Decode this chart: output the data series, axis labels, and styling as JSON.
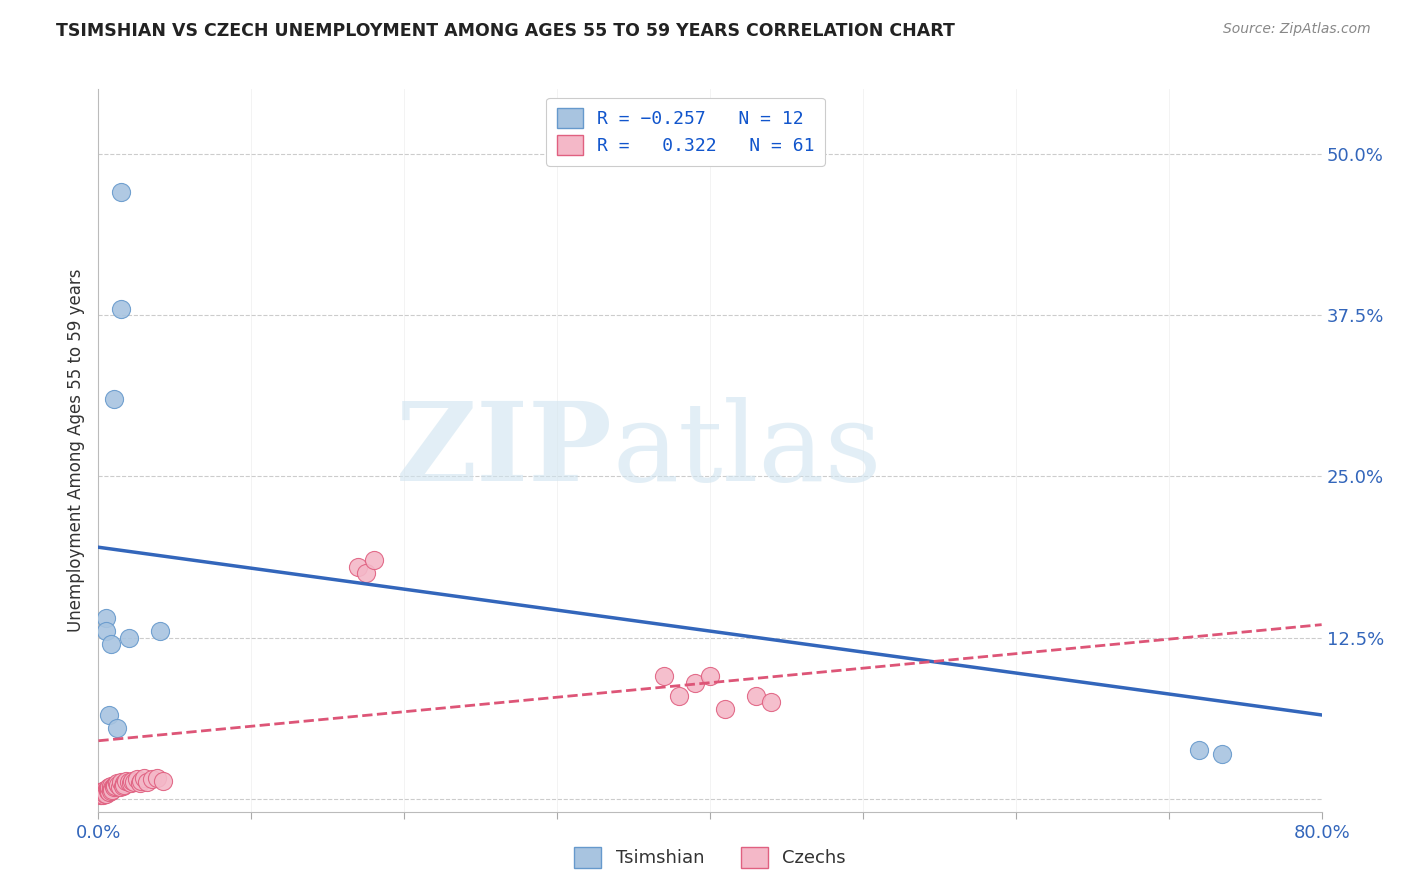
{
  "title": "TSIMSHIAN VS CZECH UNEMPLOYMENT AMONG AGES 55 TO 59 YEARS CORRELATION CHART",
  "source": "Source: ZipAtlas.com",
  "ylabel": "Unemployment Among Ages 55 to 59 years",
  "xlim": [
    0.0,
    0.8
  ],
  "ylim": [
    -0.01,
    0.55
  ],
  "yticks": [
    0.0,
    0.125,
    0.25,
    0.375,
    0.5
  ],
  "ytick_labels": [
    "",
    "12.5%",
    "25.0%",
    "37.5%",
    "50.0%"
  ],
  "legend_r1": "R = -0.257",
  "legend_n1": "N = 12",
  "legend_r2": "R =  0.322",
  "legend_n2": "N = 61",
  "tsimshian_color": "#a8c4e0",
  "tsimshian_edge": "#6699cc",
  "tsimshian_line_color": "#3366bb",
  "czech_color": "#f4b8c8",
  "czech_edge": "#e06080",
  "czech_line_color": "#dd5577",
  "background_color": "#ffffff",
  "grid_color": "#cccccc",
  "tsimshian_x": [
    0.015,
    0.015,
    0.01,
    0.005,
    0.005,
    0.008,
    0.007,
    0.012,
    0.02,
    0.72,
    0.735,
    0.04
  ],
  "tsimshian_y": [
    0.47,
    0.38,
    0.31,
    0.14,
    0.13,
    0.12,
    0.065,
    0.055,
    0.125,
    0.038,
    0.035,
    0.13
  ],
  "czech_x": [
    0.001,
    0.001,
    0.002,
    0.002,
    0.002,
    0.003,
    0.003,
    0.003,
    0.003,
    0.004,
    0.004,
    0.004,
    0.005,
    0.005,
    0.005,
    0.005,
    0.006,
    0.006,
    0.006,
    0.007,
    0.007,
    0.007,
    0.008,
    0.008,
    0.008,
    0.009,
    0.009,
    0.01,
    0.01,
    0.011,
    0.011,
    0.012,
    0.013,
    0.014,
    0.015,
    0.016,
    0.017,
    0.017,
    0.018,
    0.02,
    0.021,
    0.022,
    0.023,
    0.025,
    0.027,
    0.028,
    0.03,
    0.032,
    0.035,
    0.038,
    0.042,
    0.17,
    0.175,
    0.18,
    0.37,
    0.38,
    0.39,
    0.4,
    0.41,
    0.43,
    0.44
  ],
  "czech_y": [
    0.005,
    0.003,
    0.005,
    0.004,
    0.003,
    0.005,
    0.004,
    0.006,
    0.003,
    0.005,
    0.004,
    0.007,
    0.005,
    0.006,
    0.005,
    0.004,
    0.007,
    0.006,
    0.008,
    0.007,
    0.005,
    0.009,
    0.008,
    0.006,
    0.01,
    0.008,
    0.007,
    0.01,
    0.009,
    0.011,
    0.01,
    0.012,
    0.011,
    0.009,
    0.013,
    0.01,
    0.012,
    0.011,
    0.014,
    0.013,
    0.012,
    0.014,
    0.013,
    0.015,
    0.012,
    0.014,
    0.016,
    0.013,
    0.015,
    0.016,
    0.014,
    0.18,
    0.175,
    0.185,
    0.095,
    0.08,
    0.09,
    0.095,
    0.07,
    0.08,
    0.075
  ],
  "blue_line_x0": 0.0,
  "blue_line_y0": 0.195,
  "blue_line_x1": 0.8,
  "blue_line_y1": 0.065,
  "pink_line_x0": 0.0,
  "pink_line_y0": 0.045,
  "pink_line_x1": 0.8,
  "pink_line_y1": 0.135
}
